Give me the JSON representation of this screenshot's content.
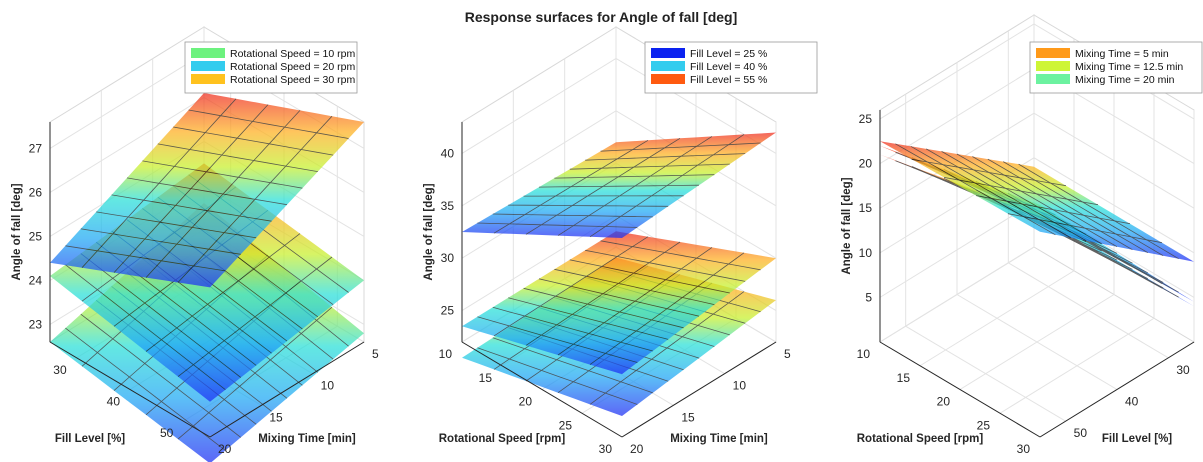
{
  "figure": {
    "title": "Response surfaces for Angle of fall [deg]"
  },
  "chart_data": [
    {
      "type": "surface3d",
      "x_label": "Fill Level [%]",
      "y_label": "Mixing Time [min]",
      "z_label": "Angle of fall [deg]",
      "x_ticks": [
        "30",
        "40",
        "50"
      ],
      "y_ticks": [
        "5",
        "10",
        "15",
        "20"
      ],
      "z_ticks": [
        "23",
        "24",
        "25",
        "26",
        "27"
      ],
      "x_range": [
        25,
        55
      ],
      "y_range": [
        5,
        20
      ],
      "z_range": [
        22.6,
        27.6
      ],
      "grid": true,
      "legend_position": "top-right",
      "series": [
        {
          "name": "Rotational Speed = 10 rpm",
          "color": "#6cf27e",
          "corners": {
            "x25_y5": 23.6,
            "x55_y5": 22.8,
            "x25_y20": 22.6,
            "x55_y20": 22.0
          }
        },
        {
          "name": "Rotational Speed = 20 rpm",
          "color": "#33ccee",
          "corners": {
            "x25_y5": 24.5,
            "x55_y5": 24.0,
            "x25_y20": 24.1,
            "x55_y20": 23.4
          }
        },
        {
          "name": "Rotational Speed = 30 rpm",
          "color": "#ffc21e",
          "corners": {
            "x25_y5": 26.1,
            "x55_y5": 27.6,
            "x25_y20": 24.4,
            "x55_y20": 26.0
          }
        }
      ]
    },
    {
      "type": "surface3d",
      "x_label": "Rotational Speed [rpm]",
      "y_label": "Mixing Time [min]",
      "z_label": "Angle of fall [deg]",
      "x_ticks": [
        "10",
        "15",
        "20",
        "25",
        "30"
      ],
      "y_ticks": [
        "5",
        "10",
        "15",
        "20"
      ],
      "z_ticks": [
        "25",
        "30",
        "35",
        "40"
      ],
      "x_range": [
        10,
        30
      ],
      "y_range": [
        5,
        20
      ],
      "z_range": [
        22,
        43
      ],
      "grid": true,
      "legend_position": "top-right",
      "series": [
        {
          "name": "Fill Level = 25 %",
          "color": "#0b22f0",
          "corners": {
            "x10_y5": 21.0,
            "x30_y5": 26.0,
            "x10_y20": 20.5,
            "x30_y20": 24.0
          }
        },
        {
          "name": "Fill Level = 40 %",
          "color": "#33ccee",
          "corners": {
            "x10_y5": 23.5,
            "x30_y5": 30.0,
            "x10_y20": 23.5,
            "x30_y20": 28.0
          }
        },
        {
          "name": "Fill Level = 55 %",
          "color": "#ff5a10",
          "corners": {
            "x10_y5": 32.0,
            "x30_y5": 42.0,
            "x10_y20": 32.5,
            "x30_y20": 41.0
          }
        }
      ]
    },
    {
      "type": "surface3d",
      "x_label": "Rotational Speed [rpm]",
      "y_label": "Fill Level [%]",
      "z_label": "Angle of fall [deg]",
      "x_ticks": [
        "10",
        "15",
        "20",
        "25",
        "30"
      ],
      "y_ticks": [
        "30",
        "40",
        "50"
      ],
      "z_ticks": [
        "5",
        "10",
        "15",
        "20",
        "25"
      ],
      "x_range": [
        10,
        30
      ],
      "y_range": [
        25,
        55
      ],
      "z_range": [
        0,
        26
      ],
      "grid": true,
      "legend_position": "top-right",
      "series": [
        {
          "name": "Mixing Time = 5 min",
          "color": "#ff9a1a",
          "corners": {
            "x10_y25": 4.0,
            "x30_y25": 4.5,
            "x10_y55": 22.0,
            "x30_y55": 26.0
          }
        },
        {
          "name": "Mixing Time = 12.5 min",
          "color": "#cef535",
          "corners": {
            "x10_y25": 3.5,
            "x30_y25": 4.0,
            "x10_y55": 21.0,
            "x30_y55": 25.0
          }
        },
        {
          "name": "Mixing Time = 20 min",
          "color": "#6cf2a0",
          "corners": {
            "x10_y25": 9.0,
            "x30_y25": 9.0,
            "x10_y55": 22.5,
            "x30_y55": 23.0
          }
        }
      ]
    }
  ]
}
